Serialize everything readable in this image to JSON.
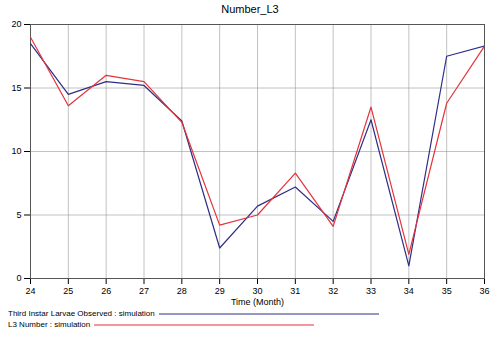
{
  "chart_data": {
    "type": "line",
    "title": "Number_L3",
    "x_label": "Time (Month)",
    "x": [
      24,
      25,
      26,
      27,
      28,
      29,
      30,
      31,
      32,
      33,
      34,
      35,
      36
    ],
    "series": [
      {
        "name": "Third Instar Larvae Observed : simulation",
        "color": "#2e2e86",
        "values": [
          18.5,
          14.5,
          15.5,
          15.2,
          12.4,
          2.4,
          5.7,
          7.2,
          4.5,
          12.5,
          1.0,
          17.5,
          18.3
        ]
      },
      {
        "name": "L3 Number : simulation",
        "color": "#e3343c",
        "values": [
          19.0,
          13.6,
          16.0,
          15.5,
          12.3,
          4.2,
          5.0,
          8.3,
          4.1,
          13.5,
          1.9,
          13.8,
          18.3
        ]
      }
    ],
    "xlim": [
      24,
      36
    ],
    "xticks": [
      24,
      25,
      26,
      27,
      28,
      29,
      30,
      31,
      32,
      33,
      34,
      35,
      36
    ],
    "ylim": [
      0,
      20
    ],
    "yticks": [
      0,
      5,
      10,
      15,
      20
    ],
    "grid": true
  }
}
